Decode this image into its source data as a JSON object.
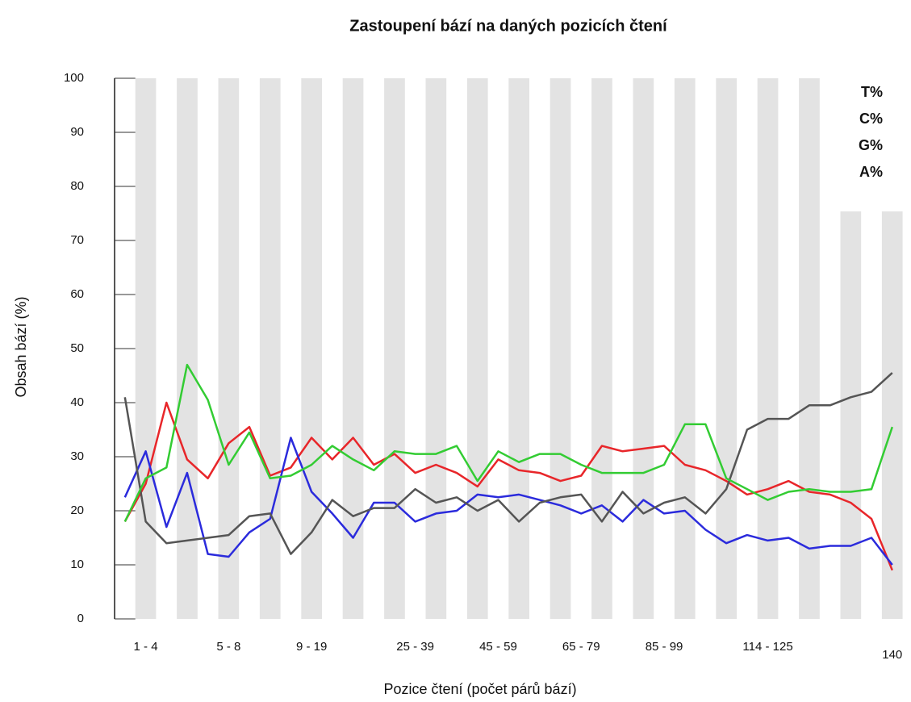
{
  "chart_data": {
    "type": "line",
    "title": "Zastoupení bází na daných pozicích čtení",
    "x_label": "Pozice čtení (počet párů bází)",
    "y_label": "Obsah bází (%)",
    "categories": [
      null,
      "1 - 4",
      null,
      null,
      null,
      "5 - 8",
      null,
      null,
      null,
      "9 - 19",
      null,
      null,
      null,
      null,
      "25 - 39",
      null,
      null,
      null,
      "45 - 59",
      null,
      null,
      null,
      "65 - 79",
      null,
      null,
      null,
      "85 - 99",
      null,
      null,
      null,
      null,
      "114 -  125",
      null,
      null,
      null,
      null,
      null,
      "140"
    ],
    "series": [
      {
        "name": "T%",
        "color": "#e8262a",
        "values": [
          18,
          25,
          40,
          29.5,
          26,
          32.5,
          35.5,
          26.5,
          28,
          33.5,
          29.5,
          33.5,
          28.5,
          30.5,
          27,
          28.5,
          27,
          24.5,
          29.5,
          27.5,
          27,
          25.5,
          26.5,
          32,
          31,
          31.5,
          32,
          28.5,
          27.5,
          25.5,
          23,
          24,
          25.5,
          23.5,
          23,
          21.5,
          18.5,
          9
        ]
      },
      {
        "name": "C%",
        "color": "#2b2bdc",
        "values": [
          22.5,
          31,
          17,
          27,
          12,
          11.5,
          16,
          18.5,
          33.5,
          23.5,
          19.5,
          15,
          21.5,
          21.5,
          18,
          19.5,
          20,
          23,
          22.5,
          23,
          22,
          21,
          19.5,
          21,
          18,
          22,
          19.5,
          20,
          16.5,
          14,
          15.5,
          14.5,
          15,
          13,
          13.5,
          13.5,
          15,
          10
        ]
      },
      {
        "name": "G%",
        "color": "#555555",
        "values": [
          41,
          18,
          14,
          14.5,
          15,
          15.5,
          19,
          19.5,
          12,
          16,
          22,
          19,
          20.5,
          20.5,
          24,
          21.5,
          22.5,
          20,
          22,
          18,
          21.5,
          22.5,
          23,
          18,
          23.5,
          19.5,
          21.5,
          22.5,
          19.5,
          24,
          35,
          37,
          37,
          39.5,
          39.5,
          41,
          42,
          45.5
        ]
      },
      {
        "name": "A%",
        "color": "#33cc33",
        "values": [
          18,
          26,
          28,
          47,
          40.5,
          28.5,
          34.5,
          26,
          26.5,
          28.5,
          32,
          29.5,
          27.5,
          31,
          30.5,
          30.5,
          32,
          25.5,
          31,
          29,
          30.5,
          30.5,
          28.5,
          27,
          27,
          27,
          28.5,
          36,
          36,
          26,
          24,
          22,
          23.5,
          24,
          23.5,
          23.5,
          24,
          35.5
        ]
      }
    ],
    "ylim": [
      0,
      100
    ],
    "yticks": [
      0,
      10,
      20,
      30,
      40,
      50,
      60,
      70,
      80,
      90,
      100
    ],
    "legend": "upper right"
  }
}
